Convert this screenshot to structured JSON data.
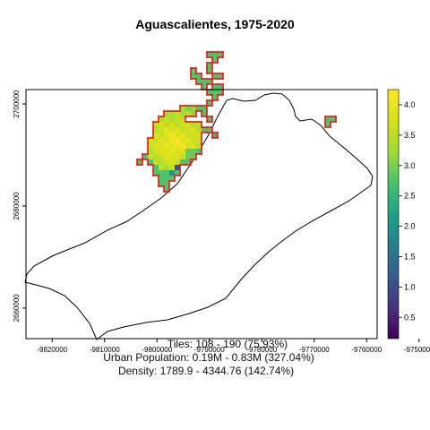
{
  "title": "Aguascalientes, 1975-2020",
  "chart_data": {
    "type": "heatmap",
    "title": "Aguascalientes, 1975-2020",
    "xlim": [
      -9825000,
      -9750000
    ],
    "ylim": [
      2654000,
      2703000
    ],
    "x_ticks": [
      {
        "value": -9820000,
        "label": "-9820000"
      },
      {
        "value": -9810000,
        "label": "-9810000"
      },
      {
        "value": -9800000,
        "label": "-9800000"
      },
      {
        "value": -9790000,
        "label": "-9790000"
      },
      {
        "value": -9780000,
        "label": "-9780000"
      },
      {
        "value": -9770000,
        "label": "-9770000"
      },
      {
        "value": -9760000,
        "label": "-9760000"
      },
      {
        "value": -9750000,
        "label": "-9750000"
      }
    ],
    "y_ticks": [
      {
        "value": 2660000,
        "label": "2660000"
      },
      {
        "value": 2680000,
        "label": "2680000"
      },
      {
        "value": 2700000,
        "label": "2700000"
      }
    ],
    "colorbar": {
      "range": [
        0.15,
        4.25
      ],
      "ticks": [
        "0.5",
        "1.0",
        "1.5",
        "2.0",
        "2.5",
        "3.0",
        "3.5",
        "4.0"
      ]
    },
    "outline_color": "#e41a1c",
    "boundary_color": "#000000",
    "grid": false
  },
  "footer": {
    "tiles": "Tiles: 108 - 190 (75.93%)",
    "population": "Urban Population: 0.19M - 0.83M (327.04%)",
    "density": "Density: 1789.9 - 4344.76 (142.74%)"
  }
}
